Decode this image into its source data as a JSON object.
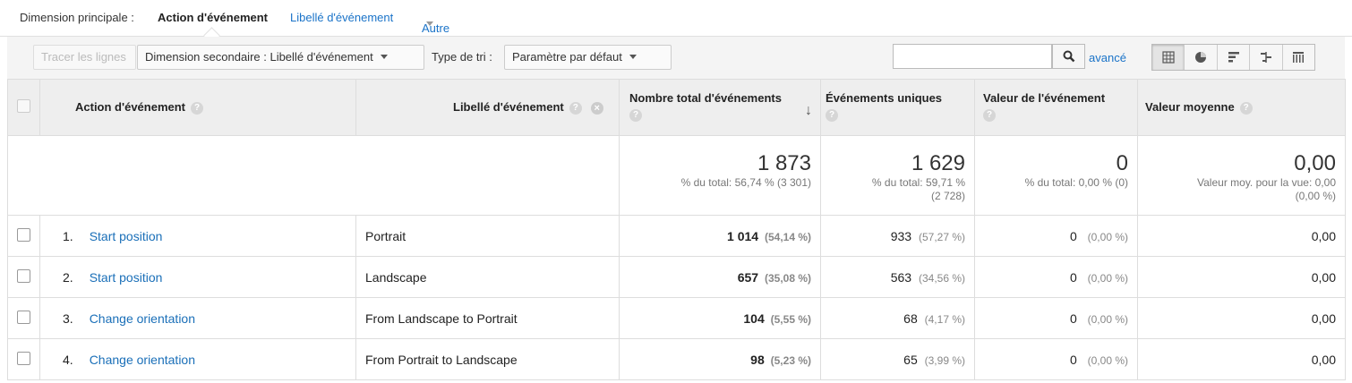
{
  "dimension_bar": {
    "label": "Dimension principale :",
    "active": "Action d'événement",
    "link": "Libellé d'événement",
    "other": "Autre"
  },
  "toolbar": {
    "plot_rows": "Tracer les lignes",
    "secondary_dimension": "Dimension secondaire : Libellé d'événement",
    "sort_label": "Type de tri :",
    "sort_value": "Paramètre par défaut",
    "search_value": "",
    "advanced": "avancé",
    "views": [
      "table-view-icon",
      "pie-view-icon",
      "performance-view-icon",
      "comparison-view-icon",
      "pivot-view-icon"
    ]
  },
  "table": {
    "headers": {
      "action": "Action d'événement",
      "label": "Libellé d'événement",
      "total_events": "Nombre total d'événements",
      "unique_events": "Événements uniques",
      "event_value": "Valeur de l'événement",
      "avg_value": "Valeur moyenne"
    },
    "totals": {
      "total_events": "1 873",
      "total_events_sub": "% du total: 56,74 % (3 301)",
      "unique_events": "1 629",
      "unique_events_sub1": "% du total: 59,71 %",
      "unique_events_sub2": "(2 728)",
      "event_value": "0",
      "event_value_sub": "% du total: 0,00 % (0)",
      "avg_value": "0,00",
      "avg_value_sub1": "Valeur moy. pour la vue: 0,00",
      "avg_value_sub2": "(0,00 %)"
    },
    "rows": [
      {
        "index": "1.",
        "action": "Start position",
        "label": "Portrait",
        "total": "1 014",
        "total_pct": "(54,14 %)",
        "unique": "933",
        "unique_pct": "(57,27 %)",
        "value": "0",
        "value_pct": "(0,00 %)",
        "avg": "0,00"
      },
      {
        "index": "2.",
        "action": "Start position",
        "label": "Landscape",
        "total": "657",
        "total_pct": "(35,08 %)",
        "unique": "563",
        "unique_pct": "(34,56 %)",
        "value": "0",
        "value_pct": "(0,00 %)",
        "avg": "0,00"
      },
      {
        "index": "3.",
        "action": "Change orientation",
        "label": "From Landscape to Portrait",
        "total": "104",
        "total_pct": "(5,55 %)",
        "unique": "68",
        "unique_pct": "(4,17 %)",
        "value": "0",
        "value_pct": "(0,00 %)",
        "avg": "0,00"
      },
      {
        "index": "4.",
        "action": "Change orientation",
        "label": "From Portrait to Landscape",
        "total": "98",
        "total_pct": "(5,23 %)",
        "unique": "65",
        "unique_pct": "(3,99 %)",
        "value": "0",
        "value_pct": "(0,00 %)",
        "avg": "0,00"
      }
    ]
  }
}
